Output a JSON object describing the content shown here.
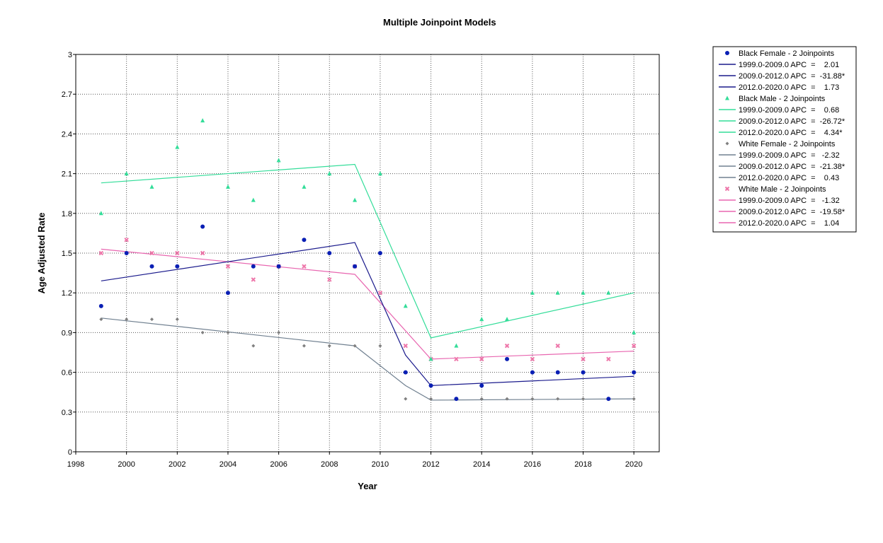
{
  "chart_data": {
    "type": "scatter",
    "title": "Multiple Joinpoint Models",
    "xlabel": "Year",
    "ylabel": "Age Adjusted Rate",
    "xlim": [
      1998,
      2021
    ],
    "ylim": [
      0,
      3
    ],
    "x_ticks": [
      "1998",
      "2000",
      "2002",
      "2004",
      "2006",
      "2008",
      "2010",
      "2012",
      "2014",
      "2016",
      "2018",
      "2020"
    ],
    "y_ticks": [
      "0",
      "0.3",
      "0.6",
      "0.9",
      "1.2",
      "1.5",
      "1.8",
      "2.1",
      "2.4",
      "2.7",
      "3"
    ],
    "grid": true,
    "legend_position": "right",
    "x": [
      1999,
      2000,
      2001,
      2002,
      2003,
      2004,
      2005,
      2006,
      2007,
      2008,
      2009,
      2010,
      2011,
      2012,
      2013,
      2014,
      2015,
      2016,
      2017,
      2018,
      2019,
      2020
    ],
    "series": [
      {
        "name": "Black Female - 2 Joinpoints",
        "marker": "circle",
        "color": "#0a1fb4",
        "line_color": "#1a1a8c",
        "observed": [
          1.1,
          1.5,
          1.4,
          1.4,
          1.7,
          1.2,
          1.4,
          1.4,
          1.6,
          1.5,
          1.4,
          1.5,
          0.6,
          0.5,
          0.4,
          0.5,
          0.7,
          0.6,
          0.6,
          0.6,
          0.4,
          0.6
        ],
        "fitted_x": [
          1999,
          2009,
          2011,
          2012,
          2020
        ],
        "fitted_y": [
          1.29,
          1.58,
          0.73,
          0.5,
          0.57
        ],
        "segments": [
          "1999.0-2009.0 APC  =    2.01",
          "2009.0-2012.0 APC  =  -31.88*",
          "2012.0-2020.0 APC  =    1.73"
        ]
      },
      {
        "name": "Black Male - 2 Joinpoints",
        "marker": "triangle",
        "color": "#33dd99",
        "line_color": "#33dd99",
        "observed": [
          1.8,
          2.1,
          2.0,
          2.3,
          2.5,
          2.0,
          1.9,
          2.2,
          2.0,
          2.1,
          1.9,
          2.1,
          1.1,
          0.7,
          0.8,
          1.0,
          1.0,
          1.2,
          1.2,
          1.2,
          1.2,
          0.9
        ],
        "fitted_x": [
          1999,
          2009,
          2012,
          2020
        ],
        "fitted_y": [
          2.03,
          2.17,
          0.86,
          1.2
        ],
        "segments": [
          "1999.0-2009.0 APC  =    0.68",
          "2009.0-2012.0 APC  =  -26.72*",
          "2012.0-2020.0 APC  =    4.34*"
        ]
      },
      {
        "name": "White Female - 2 Joinpoints",
        "marker": "diamond",
        "color": "#808080",
        "line_color": "#708090",
        "observed": [
          1.0,
          1.0,
          1.0,
          1.0,
          0.9,
          0.9,
          0.8,
          0.9,
          0.8,
          0.8,
          0.8,
          0.8,
          0.4,
          0.4,
          0.4,
          0.4,
          0.4,
          0.4,
          0.4,
          0.4,
          0.4,
          0.4
        ],
        "fitted_x": [
          1999,
          2009,
          2011,
          2012,
          2020
        ],
        "fitted_y": [
          1.01,
          0.8,
          0.5,
          0.39,
          0.4
        ],
        "segments": [
          "1999.0-2009.0 APC  =   -2.32",
          "2009.0-2012.0 APC  =  -21.38*",
          "2012.0-2020.0 APC  =    0.43"
        ]
      },
      {
        "name": "White Male - 2 Joinpoints",
        "marker": "x",
        "color": "#ee77aa",
        "line_color": "#e866b0",
        "observed": [
          1.5,
          1.6,
          1.5,
          1.5,
          1.5,
          1.4,
          1.3,
          1.4,
          1.4,
          1.3,
          1.4,
          1.2,
          0.8,
          0.7,
          0.7,
          0.7,
          0.8,
          0.7,
          0.8,
          0.7,
          0.7,
          0.8
        ],
        "fitted_x": [
          1999,
          2009,
          2012,
          2020
        ],
        "fitted_y": [
          1.53,
          1.34,
          0.7,
          0.76
        ],
        "segments": [
          "1999.0-2009.0 APC  =   -1.32",
          "2009.0-2012.0 APC  =  -19.58*",
          "2012.0-2020.0 APC  =    1.04"
        ]
      }
    ]
  }
}
